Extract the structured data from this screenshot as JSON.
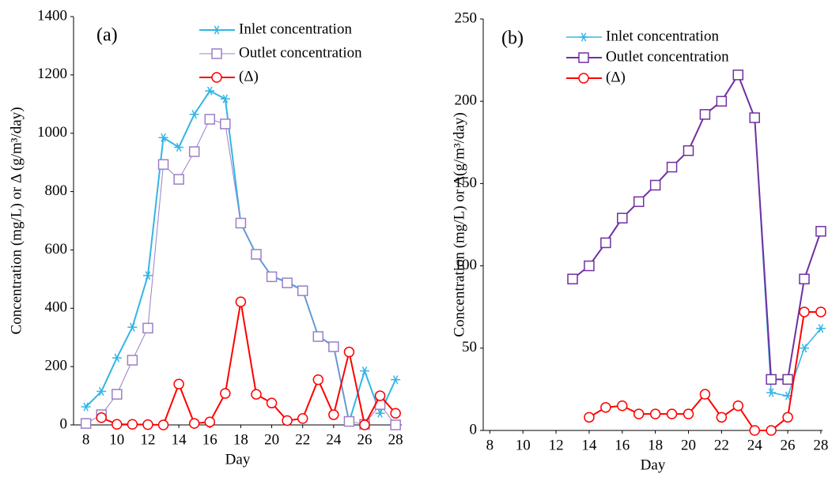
{
  "chart_data": [
    {
      "type": "line",
      "annotation": "(a)",
      "x_label": "Day",
      "y_label": "Concentration (mg/L) or Δ (g/m³/day)",
      "x": [
        8,
        9,
        10,
        11,
        12,
        13,
        14,
        15,
        16,
        17,
        18,
        19,
        20,
        21,
        22,
        23,
        24,
        25,
        26,
        27,
        28
      ],
      "xlim": [
        7.2,
        28.4
      ],
      "xticks": [
        8,
        10,
        12,
        14,
        16,
        18,
        20,
        22,
        24,
        26,
        28
      ],
      "ylim": [
        0,
        1400
      ],
      "yticks": [
        0,
        200,
        400,
        600,
        800,
        1000,
        1200,
        1400
      ],
      "series": [
        {
          "name": "Inlet concentration",
          "color": "#33b5e5",
          "marker": "star",
          "values": [
            62,
            115,
            230,
            335,
            512,
            985,
            952,
            1065,
            1145,
            1118,
            692,
            585,
            510,
            490,
            462,
            305,
            270,
            10,
            185,
            40,
            155
          ]
        },
        {
          "name": "Outlet concentration",
          "color": "#9b7fc7",
          "marker": "square",
          "values": [
            5,
            35,
            105,
            222,
            332,
            893,
            842,
            937,
            1048,
            1032,
            692,
            585,
            508,
            487,
            460,
            303,
            268,
            12,
            2,
            70,
            0
          ]
        },
        {
          "name": "(Δ)",
          "color": "#ff0000",
          "marker": "circle",
          "values": [
            null,
            25,
            2,
            2,
            1,
            0,
            140,
            5,
            10,
            108,
            422,
            105,
            75,
            15,
            22,
            155,
            35,
            250,
            0,
            100,
            40
          ]
        }
      ]
    },
    {
      "type": "line",
      "annotation": "(b)",
      "x_label": "Day",
      "y_label": "Concentration (mg/L) or Δ(g/m³/day)",
      "x": [
        8,
        9,
        10,
        11,
        12,
        13,
        14,
        15,
        16,
        17,
        18,
        19,
        20,
        21,
        22,
        23,
        24,
        25,
        26,
        27,
        28
      ],
      "xlim": [
        7.6,
        28.1
      ],
      "xticks": [
        8,
        10,
        12,
        14,
        16,
        18,
        20,
        22,
        24,
        26,
        28
      ],
      "ylim": [
        0,
        250
      ],
      "yticks": [
        0,
        50,
        100,
        150,
        200,
        250
      ],
      "series": [
        {
          "name": "Inlet concentration",
          "color": "#33b5e5",
          "marker": "star",
          "values": [
            null,
            null,
            null,
            null,
            null,
            92,
            100,
            114,
            129,
            139,
            149,
            160,
            170,
            192,
            200,
            216,
            190,
            23,
            21,
            50,
            62
          ]
        },
        {
          "name": "Outlet concentration",
          "color": "#7030a0",
          "marker": "square",
          "values": [
            null,
            null,
            null,
            null,
            null,
            92,
            100,
            114,
            129,
            139,
            149,
            160,
            170,
            192,
            200,
            216,
            190,
            31,
            31,
            92,
            121
          ]
        },
        {
          "name": "(Δ)",
          "color": "#ff0000",
          "marker": "circle",
          "values": [
            null,
            null,
            null,
            null,
            null,
            null,
            8,
            14,
            15,
            10,
            10,
            10,
            10,
            22,
            8,
            15,
            0,
            0,
            8,
            72,
            72
          ]
        }
      ]
    }
  ]
}
